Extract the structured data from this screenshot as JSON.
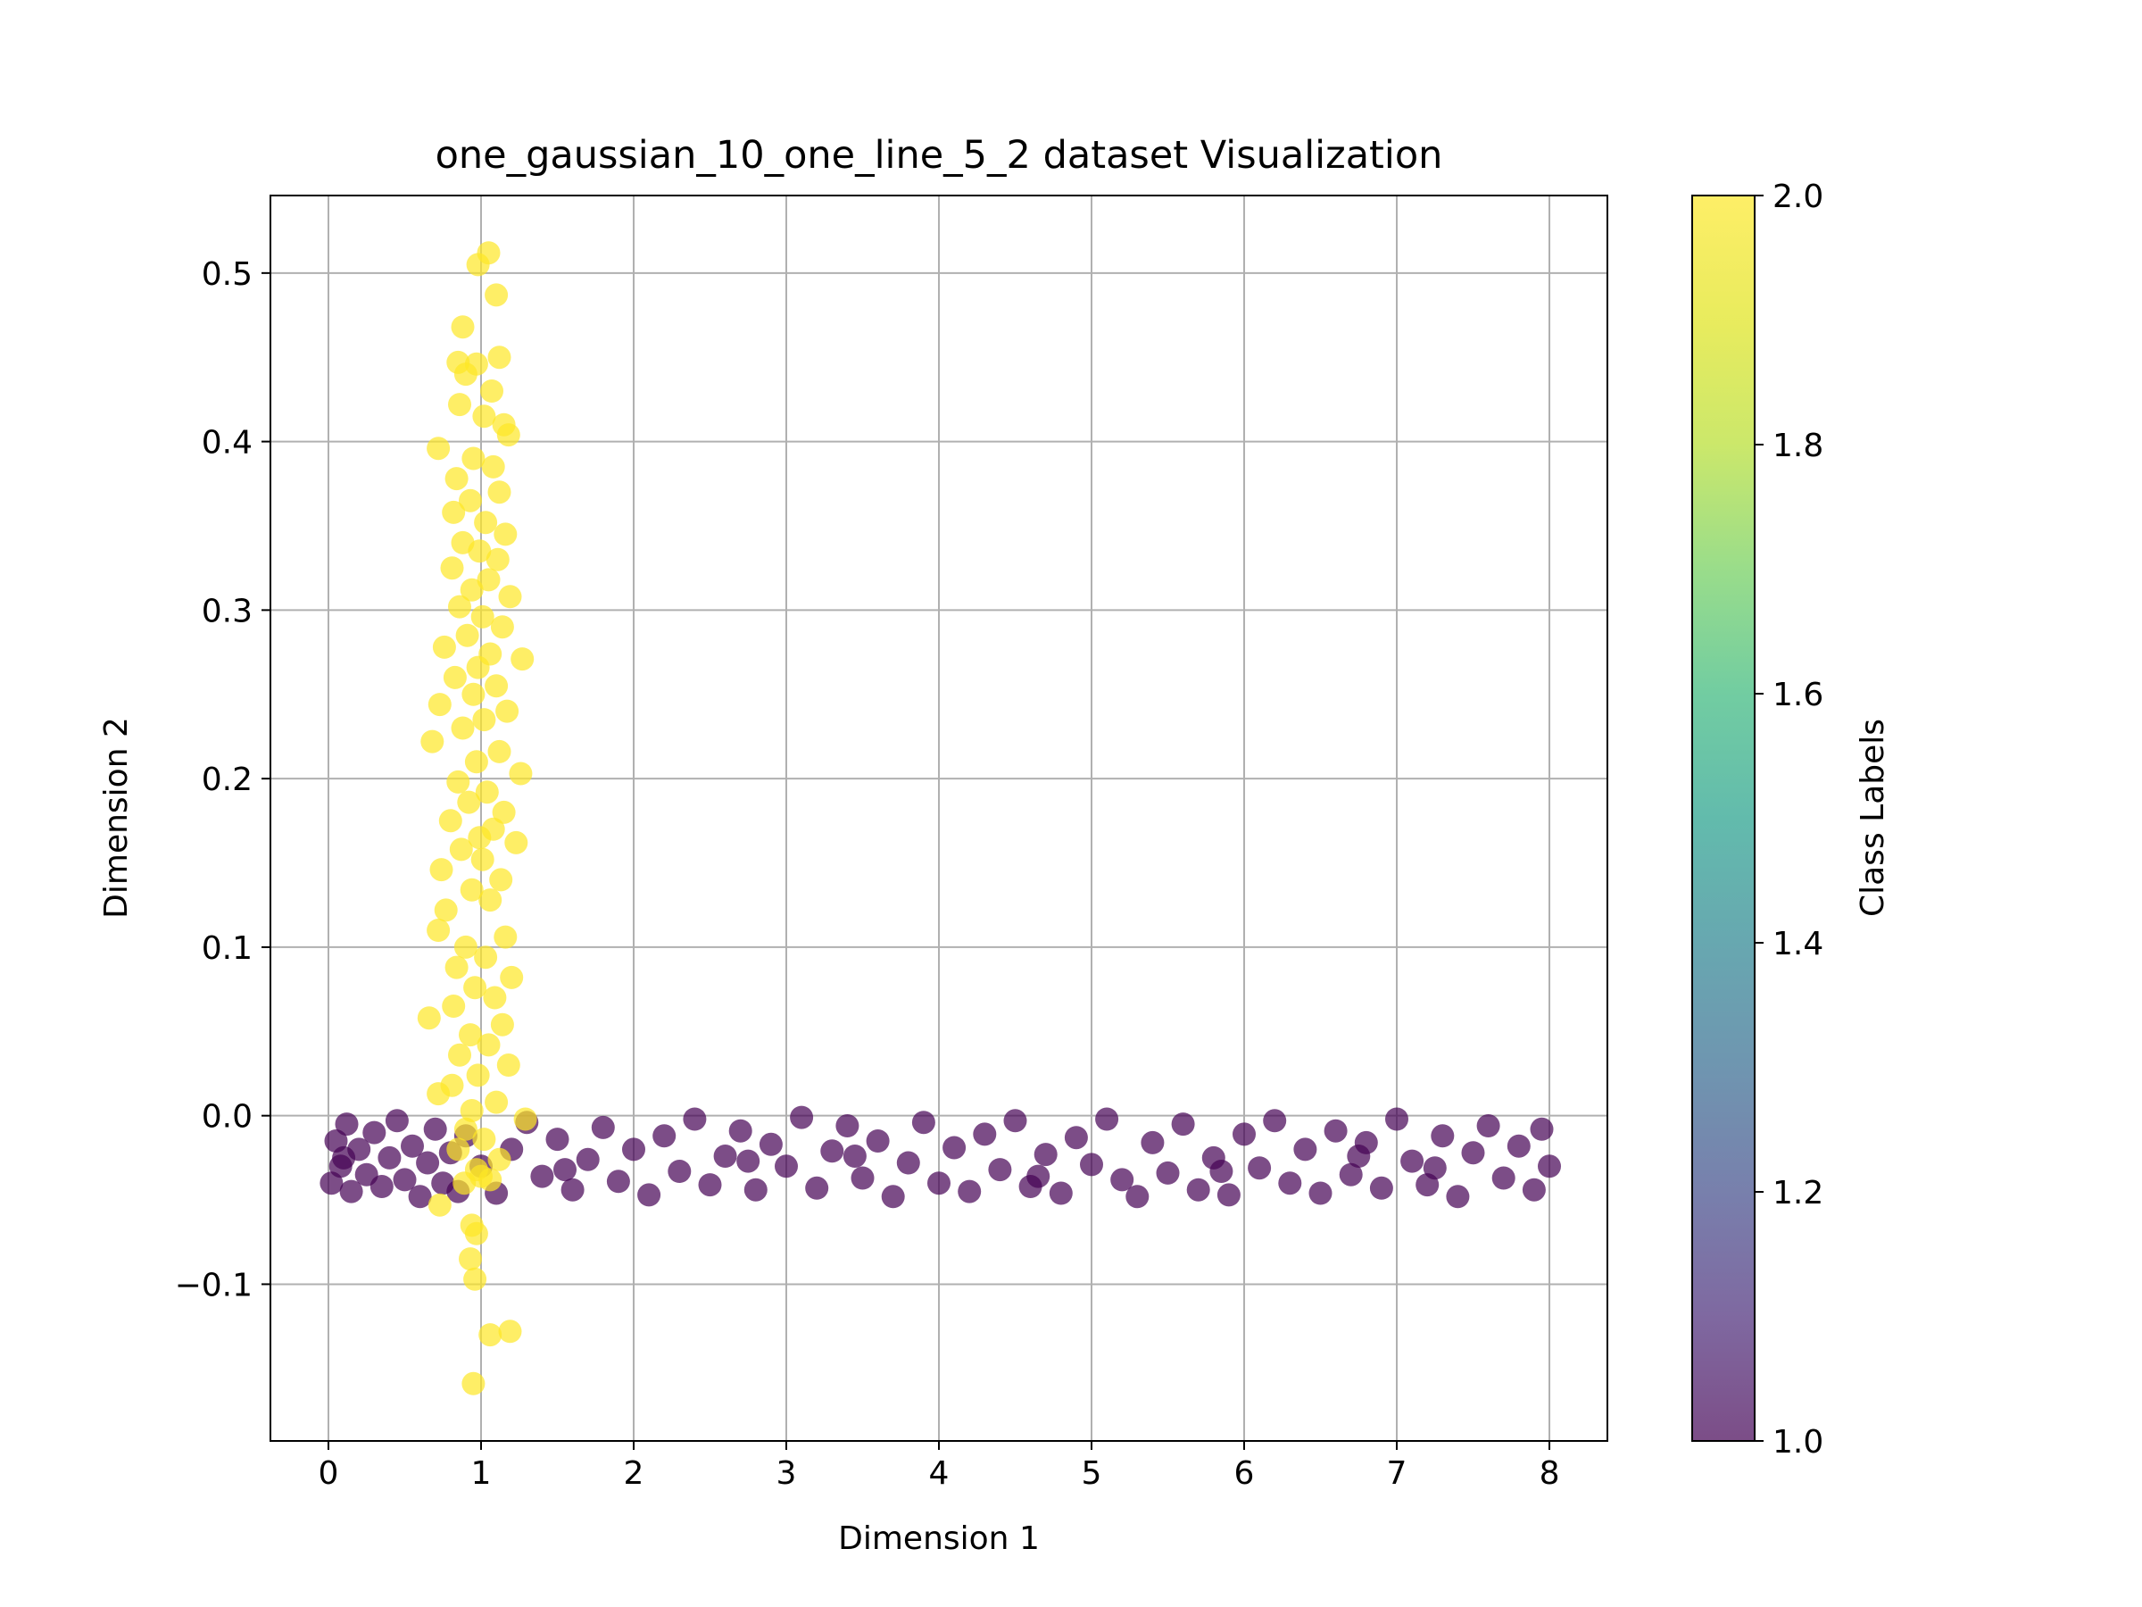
{
  "chart_data": {
    "type": "scatter",
    "title": "one_gaussian_10_one_line_5_2 dataset Visualization",
    "xlabel": "Dimension 1",
    "ylabel": "Dimension 2",
    "xlim": [
      -0.38,
      8.38
    ],
    "ylim": [
      -0.193,
      0.546
    ],
    "x_ticks": [
      0,
      1,
      2,
      3,
      4,
      5,
      6,
      7,
      8
    ],
    "x_tick_labels": [
      "0",
      "1",
      "2",
      "3",
      "4",
      "5",
      "6",
      "7",
      "8"
    ],
    "y_ticks": [
      -0.1,
      0.0,
      0.1,
      0.2,
      0.3,
      0.4,
      0.5
    ],
    "y_tick_labels": [
      "−0.1",
      "0.0",
      "0.1",
      "0.2",
      "0.3",
      "0.4",
      "0.5"
    ],
    "grid": true,
    "colorbar": {
      "label": "Class Labels",
      "range": [
        1.0,
        2.0
      ],
      "ticks": [
        1.0,
        1.2,
        1.4,
        1.6,
        1.8,
        2.0
      ],
      "tick_labels": [
        "1.0",
        "1.2",
        "1.4",
        "1.6",
        "1.8",
        "2.0"
      ],
      "colormap": "viridis"
    },
    "series": [
      {
        "class_label": 1,
        "color": "#440154",
        "distribution": {
          "x_range": [
            0.0,
            8.0
          ],
          "y_range": [
            -0.05,
            0.0
          ]
        },
        "points": [
          [
            0.02,
            -0.04
          ],
          [
            0.05,
            -0.015
          ],
          [
            0.08,
            -0.03
          ],
          [
            0.12,
            -0.005
          ],
          [
            0.15,
            -0.045
          ],
          [
            0.2,
            -0.02
          ],
          [
            0.25,
            -0.035
          ],
          [
            0.3,
            -0.01
          ],
          [
            0.35,
            -0.042
          ],
          [
            0.4,
            -0.025
          ],
          [
            0.45,
            -0.003
          ],
          [
            0.5,
            -0.038
          ],
          [
            0.55,
            -0.018
          ],
          [
            0.6,
            -0.048
          ],
          [
            0.65,
            -0.028
          ],
          [
            0.7,
            -0.008
          ],
          [
            0.75,
            -0.04
          ],
          [
            0.8,
            -0.022
          ],
          [
            0.85,
            -0.045
          ],
          [
            0.9,
            -0.012
          ],
          [
            1.0,
            -0.03
          ],
          [
            1.1,
            -0.046
          ],
          [
            1.2,
            -0.02
          ],
          [
            1.3,
            -0.004
          ],
          [
            1.4,
            -0.036
          ],
          [
            1.5,
            -0.014
          ],
          [
            1.6,
            -0.044
          ],
          [
            1.7,
            -0.026
          ],
          [
            1.8,
            -0.007
          ],
          [
            1.9,
            -0.039
          ],
          [
            2.0,
            -0.02
          ],
          [
            2.1,
            -0.047
          ],
          [
            2.2,
            -0.012
          ],
          [
            2.3,
            -0.033
          ],
          [
            2.4,
            -0.002
          ],
          [
            2.5,
            -0.041
          ],
          [
            2.6,
            -0.024
          ],
          [
            2.7,
            -0.009
          ],
          [
            2.8,
            -0.044
          ],
          [
            2.9,
            -0.017
          ],
          [
            3.0,
            -0.03
          ],
          [
            3.1,
            -0.001
          ],
          [
            3.2,
            -0.043
          ],
          [
            3.3,
            -0.021
          ],
          [
            3.4,
            -0.006
          ],
          [
            3.5,
            -0.037
          ],
          [
            3.6,
            -0.015
          ],
          [
            3.7,
            -0.048
          ],
          [
            3.8,
            -0.028
          ],
          [
            3.9,
            -0.004
          ],
          [
            4.0,
            -0.04
          ],
          [
            4.1,
            -0.019
          ],
          [
            4.2,
            -0.045
          ],
          [
            4.3,
            -0.011
          ],
          [
            4.4,
            -0.032
          ],
          [
            4.5,
            -0.003
          ],
          [
            4.6,
            -0.042
          ],
          [
            4.7,
            -0.023
          ],
          [
            4.8,
            -0.046
          ],
          [
            4.9,
            -0.013
          ],
          [
            5.0,
            -0.029
          ],
          [
            5.1,
            -0.002
          ],
          [
            5.2,
            -0.038
          ],
          [
            5.3,
            -0.048
          ],
          [
            5.4,
            -0.016
          ],
          [
            5.5,
            -0.034
          ],
          [
            5.6,
            -0.005
          ],
          [
            5.7,
            -0.044
          ],
          [
            5.8,
            -0.025
          ],
          [
            5.9,
            -0.047
          ],
          [
            6.0,
            -0.011
          ],
          [
            6.1,
            -0.031
          ],
          [
            6.2,
            -0.003
          ],
          [
            6.3,
            -0.04
          ],
          [
            6.4,
            -0.02
          ],
          [
            6.5,
            -0.046
          ],
          [
            6.6,
            -0.009
          ],
          [
            6.7,
            -0.035
          ],
          [
            6.8,
            -0.016
          ],
          [
            6.9,
            -0.043
          ],
          [
            7.0,
            -0.002
          ],
          [
            7.1,
            -0.027
          ],
          [
            7.2,
            -0.041
          ],
          [
            7.3,
            -0.012
          ],
          [
            7.4,
            -0.048
          ],
          [
            7.5,
            -0.022
          ],
          [
            7.6,
            -0.006
          ],
          [
            7.7,
            -0.037
          ],
          [
            7.8,
            -0.018
          ],
          [
            7.9,
            -0.044
          ],
          [
            7.95,
            -0.008
          ],
          [
            8.0,
            -0.03
          ],
          [
            0.1,
            -0.025
          ],
          [
            1.55,
            -0.032
          ],
          [
            2.75,
            -0.027
          ],
          [
            3.45,
            -0.024
          ],
          [
            4.65,
            -0.036
          ],
          [
            5.85,
            -0.033
          ],
          [
            6.75,
            -0.024
          ],
          [
            7.25,
            -0.031
          ]
        ]
      },
      {
        "class_label": 2,
        "color": "#fde725",
        "distribution": {
          "x_center": 1.0,
          "x_range": [
            0.6,
            1.3
          ],
          "y_range": [
            -0.16,
            0.515
          ]
        },
        "points": [
          [
            1.05,
            0.512
          ],
          [
            0.98,
            0.505
          ],
          [
            1.1,
            0.487
          ],
          [
            0.88,
            0.468
          ],
          [
            1.12,
            0.45
          ],
          [
            0.85,
            0.447
          ],
          [
            0.97,
            0.446
          ],
          [
            0.9,
            0.44
          ],
          [
            1.07,
            0.43
          ],
          [
            0.86,
            0.422
          ],
          [
            1.02,
            0.415
          ],
          [
            1.15,
            0.41
          ],
          [
            1.18,
            0.404
          ],
          [
            0.72,
            0.396
          ],
          [
            0.95,
            0.39
          ],
          [
            1.08,
            0.385
          ],
          [
            0.84,
            0.378
          ],
          [
            1.12,
            0.37
          ],
          [
            0.93,
            0.365
          ],
          [
            0.82,
            0.358
          ],
          [
            1.03,
            0.352
          ],
          [
            1.16,
            0.345
          ],
          [
            0.88,
            0.34
          ],
          [
            0.99,
            0.335
          ],
          [
            1.11,
            0.33
          ],
          [
            0.81,
            0.325
          ],
          [
            1.05,
            0.318
          ],
          [
            0.94,
            0.312
          ],
          [
            1.19,
            0.308
          ],
          [
            0.86,
            0.302
          ],
          [
            1.01,
            0.296
          ],
          [
            1.14,
            0.29
          ],
          [
            0.91,
            0.285
          ],
          [
            0.76,
            0.278
          ],
          [
            1.06,
            0.274
          ],
          [
            1.27,
            0.271
          ],
          [
            0.98,
            0.266
          ],
          [
            0.83,
            0.26
          ],
          [
            1.1,
            0.255
          ],
          [
            0.95,
            0.25
          ],
          [
            0.73,
            0.244
          ],
          [
            1.17,
            0.24
          ],
          [
            1.02,
            0.235
          ],
          [
            0.88,
            0.23
          ],
          [
            0.68,
            0.222
          ],
          [
            1.12,
            0.216
          ],
          [
            0.97,
            0.21
          ],
          [
            1.26,
            0.203
          ],
          [
            0.85,
            0.198
          ],
          [
            1.04,
            0.192
          ],
          [
            0.92,
            0.186
          ],
          [
            1.15,
            0.18
          ],
          [
            0.8,
            0.175
          ],
          [
            1.08,
            0.17
          ],
          [
            0.99,
            0.165
          ],
          [
            1.23,
            0.162
          ],
          [
            0.87,
            0.158
          ],
          [
            1.01,
            0.152
          ],
          [
            0.74,
            0.146
          ],
          [
            1.13,
            0.14
          ],
          [
            0.94,
            0.134
          ],
          [
            1.06,
            0.128
          ],
          [
            0.77,
            0.122
          ],
          [
            0.72,
            0.11
          ],
          [
            1.16,
            0.106
          ],
          [
            0.9,
            0.1
          ],
          [
            1.03,
            0.094
          ],
          [
            0.84,
            0.088
          ],
          [
            1.2,
            0.082
          ],
          [
            0.96,
            0.076
          ],
          [
            1.09,
            0.07
          ],
          [
            0.82,
            0.065
          ],
          [
            0.66,
            0.058
          ],
          [
            1.14,
            0.054
          ],
          [
            0.93,
            0.048
          ],
          [
            1.05,
            0.042
          ],
          [
            0.86,
            0.036
          ],
          [
            1.18,
            0.03
          ],
          [
            0.98,
            0.024
          ],
          [
            0.81,
            0.018
          ],
          [
            0.72,
            0.013
          ],
          [
            1.1,
            0.008
          ],
          [
            0.94,
            0.003
          ],
          [
            1.29,
            -0.002
          ],
          [
            0.9,
            -0.008
          ],
          [
            1.02,
            -0.014
          ],
          [
            0.85,
            -0.02
          ],
          [
            1.12,
            -0.026
          ],
          [
            0.97,
            -0.032
          ],
          [
            1.06,
            -0.038
          ],
          [
            0.89,
            -0.04
          ],
          [
            0.73,
            -0.053
          ],
          [
            0.94,
            -0.065
          ],
          [
            0.97,
            -0.07
          ],
          [
            0.93,
            -0.085
          ],
          [
            0.96,
            -0.097
          ],
          [
            1.06,
            -0.13
          ],
          [
            1.19,
            -0.128
          ],
          [
            0.95,
            -0.159
          ],
          [
            1.0,
            -0.036
          ]
        ]
      }
    ]
  }
}
